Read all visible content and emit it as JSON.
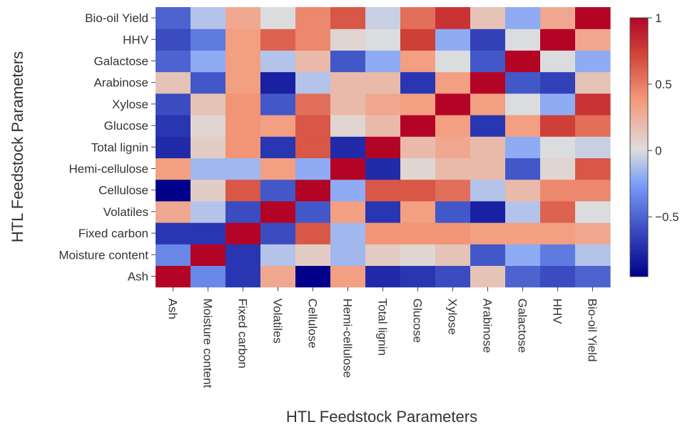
{
  "chart_data": {
    "type": "heatmap",
    "title": "",
    "xlabel": "HTL Feedstock Parameters",
    "ylabel": "HTL Feedstock Parameters",
    "x_categories": [
      "Ash",
      "Moisture content",
      "Fixed carbon",
      "Volatiles",
      "Cellulose",
      "Hemi-cellulose",
      "Total lignin",
      "Glucose",
      "Xylose",
      "Arabinose",
      "Galactose",
      "HHV",
      "Bio-oil Yield"
    ],
    "y_categories_bottom_to_top": [
      "Ash",
      "Moisture content",
      "Fixed carbon",
      "Volatiles",
      "Cellulose",
      "Hemi-cellulose",
      "Total lignin",
      "Glucose",
      "Xylose",
      "Arabinose",
      "Galactose",
      "HHV",
      "Bio-oil Yield"
    ],
    "values": [
      [
        1.0,
        -0.35,
        -0.7,
        0.3,
        -0.95,
        0.35,
        -0.75,
        -0.7,
        -0.6,
        0.15,
        -0.5,
        -0.6,
        -0.5
      ],
      [
        -0.35,
        1.0,
        -0.7,
        -0.1,
        0.1,
        -0.15,
        0.1,
        0.05,
        0.15,
        -0.55,
        -0.2,
        -0.4,
        -0.1
      ],
      [
        -0.7,
        -0.7,
        1.0,
        -0.6,
        0.65,
        -0.15,
        0.4,
        0.4,
        0.4,
        0.35,
        0.35,
        0.35,
        0.3
      ],
      [
        0.3,
        -0.1,
        -0.6,
        1.0,
        -0.55,
        0.35,
        -0.7,
        0.35,
        -0.55,
        -0.8,
        -0.1,
        0.6,
        0.0
      ],
      [
        -0.95,
        0.1,
        0.65,
        -0.55,
        1.0,
        -0.2,
        0.65,
        0.65,
        0.55,
        -0.1,
        0.2,
        0.45,
        0.45
      ],
      [
        0.35,
        -0.15,
        -0.15,
        0.35,
        -0.2,
        1.0,
        -0.75,
        0.05,
        0.2,
        0.2,
        -0.55,
        0.05,
        0.65
      ],
      [
        -0.75,
        0.1,
        0.4,
        -0.7,
        0.65,
        -0.75,
        1.0,
        0.2,
        0.3,
        0.2,
        -0.2,
        0.0,
        -0.05
      ],
      [
        -0.7,
        0.05,
        0.4,
        0.35,
        0.65,
        0.05,
        0.2,
        1.0,
        0.35,
        -0.7,
        0.35,
        0.75,
        0.55
      ],
      [
        -0.6,
        0.15,
        0.4,
        -0.55,
        0.55,
        0.2,
        0.3,
        0.35,
        1.0,
        0.35,
        0.0,
        -0.2,
        0.8
      ],
      [
        0.15,
        -0.55,
        0.35,
        -0.8,
        -0.1,
        0.2,
        0.2,
        -0.7,
        0.35,
        1.0,
        -0.55,
        -0.65,
        0.15
      ],
      [
        -0.5,
        -0.2,
        0.35,
        -0.1,
        0.2,
        -0.55,
        -0.2,
        0.35,
        0.0,
        -0.55,
        1.0,
        0.0,
        -0.2
      ],
      [
        -0.6,
        -0.4,
        0.35,
        0.6,
        0.45,
        0.05,
        0.0,
        0.75,
        -0.2,
        -0.65,
        0.0,
        1.0,
        0.3
      ],
      [
        -0.5,
        -0.1,
        0.3,
        0.0,
        0.45,
        0.65,
        -0.05,
        0.55,
        0.8,
        0.15,
        -0.2,
        0.3,
        1.0
      ]
    ],
    "colorbar": {
      "min": -0.95,
      "max": 1,
      "ticks": [
        1,
        0.5,
        0,
        -0.5
      ],
      "tick_labels": [
        "1",
        "0.5",
        "0",
        "−0.5"
      ],
      "colorscale": "coolwarm"
    },
    "grid": false
  }
}
